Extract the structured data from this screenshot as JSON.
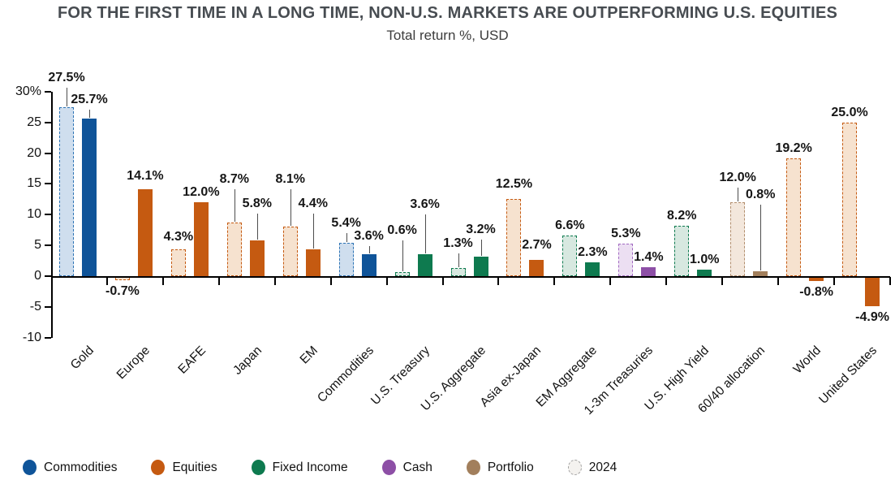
{
  "title": "FOR THE FIRST TIME IN A LONG TIME, NON-U.S. MARKETS ARE OUTPERFORMING U.S. EQUITIES",
  "subtitle": "Total return %, USD",
  "chart_data": {
    "type": "bar",
    "title": "FOR THE FIRST TIME IN A LONG TIME, NON-U.S. MARKETS ARE OUTPERFORMING U.S. EQUITIES",
    "subtitle": "Total return %, USD",
    "categories": [
      "Gold",
      "Europe",
      "EAFE",
      "Japan",
      "EM",
      "Commodities",
      "U.S. Treasury",
      "U.S. Aggregate",
      "Asia ex-Japan",
      "EM Aggregate",
      "1-3m Treasuries",
      "U.S. High Yield",
      "60/40 allocation",
      "World",
      "United States"
    ],
    "category_classes": [
      "commodities",
      "equities",
      "equities",
      "equities",
      "equities",
      "commodities",
      "fixed_income",
      "fixed_income",
      "equities",
      "fixed_income",
      "cash",
      "fixed_income",
      "portfolio",
      "equities",
      "equities"
    ],
    "series": [
      {
        "key": "y2024",
        "legend_label": "2024",
        "bar_style": "dashed",
        "values": [
          27.5,
          -0.7,
          4.3,
          8.7,
          8.1,
          5.4,
          0.6,
          1.3,
          12.5,
          6.6,
          5.3,
          8.2,
          12.0,
          19.2,
          25.0
        ]
      },
      {
        "key": "current",
        "legend_label": null,
        "bar_style": "solid",
        "values": [
          25.7,
          14.1,
          12.0,
          5.8,
          4.4,
          3.6,
          3.6,
          3.2,
          2.7,
          2.3,
          1.4,
          1.0,
          0.8,
          -0.8,
          -4.9
        ]
      }
    ],
    "value_label_format": "{v}%",
    "ylim": [
      -10,
      30
    ],
    "yticks": [
      30,
      25,
      20,
      15,
      10,
      5,
      0,
      -5,
      -10
    ],
    "ytick_labels": [
      "30%",
      "25",
      "20",
      "15",
      "10",
      "5",
      "0",
      "-5",
      "-10"
    ],
    "grid": false,
    "legend_position": "bottom"
  },
  "palette": {
    "commodities": {
      "solid": "#0f5499",
      "fill": "#cfdeee",
      "border": "#2e74b5"
    },
    "equities": {
      "solid": "#c55a11",
      "fill": "#f6e2cf",
      "border": "#c55a11"
    },
    "fixed_income": {
      "solid": "#0e7a4f",
      "fill": "#d7e8e0",
      "border": "#0e7a4f"
    },
    "cash": {
      "solid": "#8d4fa6",
      "fill": "#ecdff2",
      "border": "#a169c1"
    },
    "portfolio": {
      "solid": "#a27f5c",
      "fill": "#f3e7dc",
      "border": "#b28e6d"
    },
    "y2024": {
      "solid": "#f4f2ef",
      "fill": "#f4f2ef",
      "border": "#a0a0a0"
    }
  },
  "legend": {
    "items": [
      {
        "label": "Commodities",
        "class": "commodities",
        "style": "solid"
      },
      {
        "label": "Equities",
        "class": "equities",
        "style": "solid"
      },
      {
        "label": "Fixed Income",
        "class": "fixed_income",
        "style": "solid"
      },
      {
        "label": "Cash",
        "class": "cash",
        "style": "solid"
      },
      {
        "label": "Portfolio",
        "class": "portfolio",
        "style": "solid"
      },
      {
        "label": "2024",
        "class": "y2024",
        "style": "dashed"
      }
    ]
  }
}
